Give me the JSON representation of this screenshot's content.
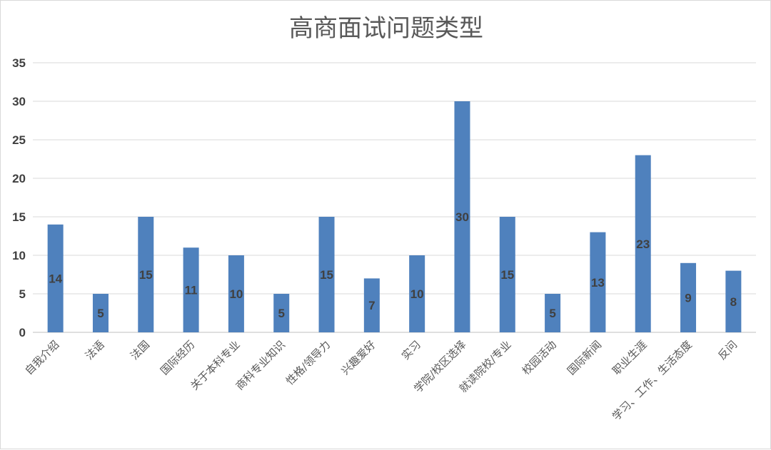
{
  "chart_data": {
    "type": "bar",
    "title": "高商面试问题类型",
    "xlabel": "",
    "ylabel": "",
    "ylim": [
      0,
      35
    ],
    "yticks": [
      0,
      5,
      10,
      15,
      20,
      25,
      30,
      35
    ],
    "grid": true,
    "legend": "none",
    "bar_color": "#4f81bd",
    "categories": [
      "自我介绍",
      "法语",
      "法国",
      "国际经历",
      "关于本科专业",
      "商科专业知识",
      "性格/领导力",
      "兴趣爱好",
      "实习",
      "学院/校区选择",
      "就读院校/专业",
      "校园活动",
      "国际新闻",
      "职业生涯",
      "学习、工作、生活态度",
      "反问"
    ],
    "values": [
      14,
      5,
      15,
      11,
      10,
      5,
      15,
      7,
      10,
      30,
      15,
      5,
      13,
      23,
      9,
      8
    ]
  }
}
